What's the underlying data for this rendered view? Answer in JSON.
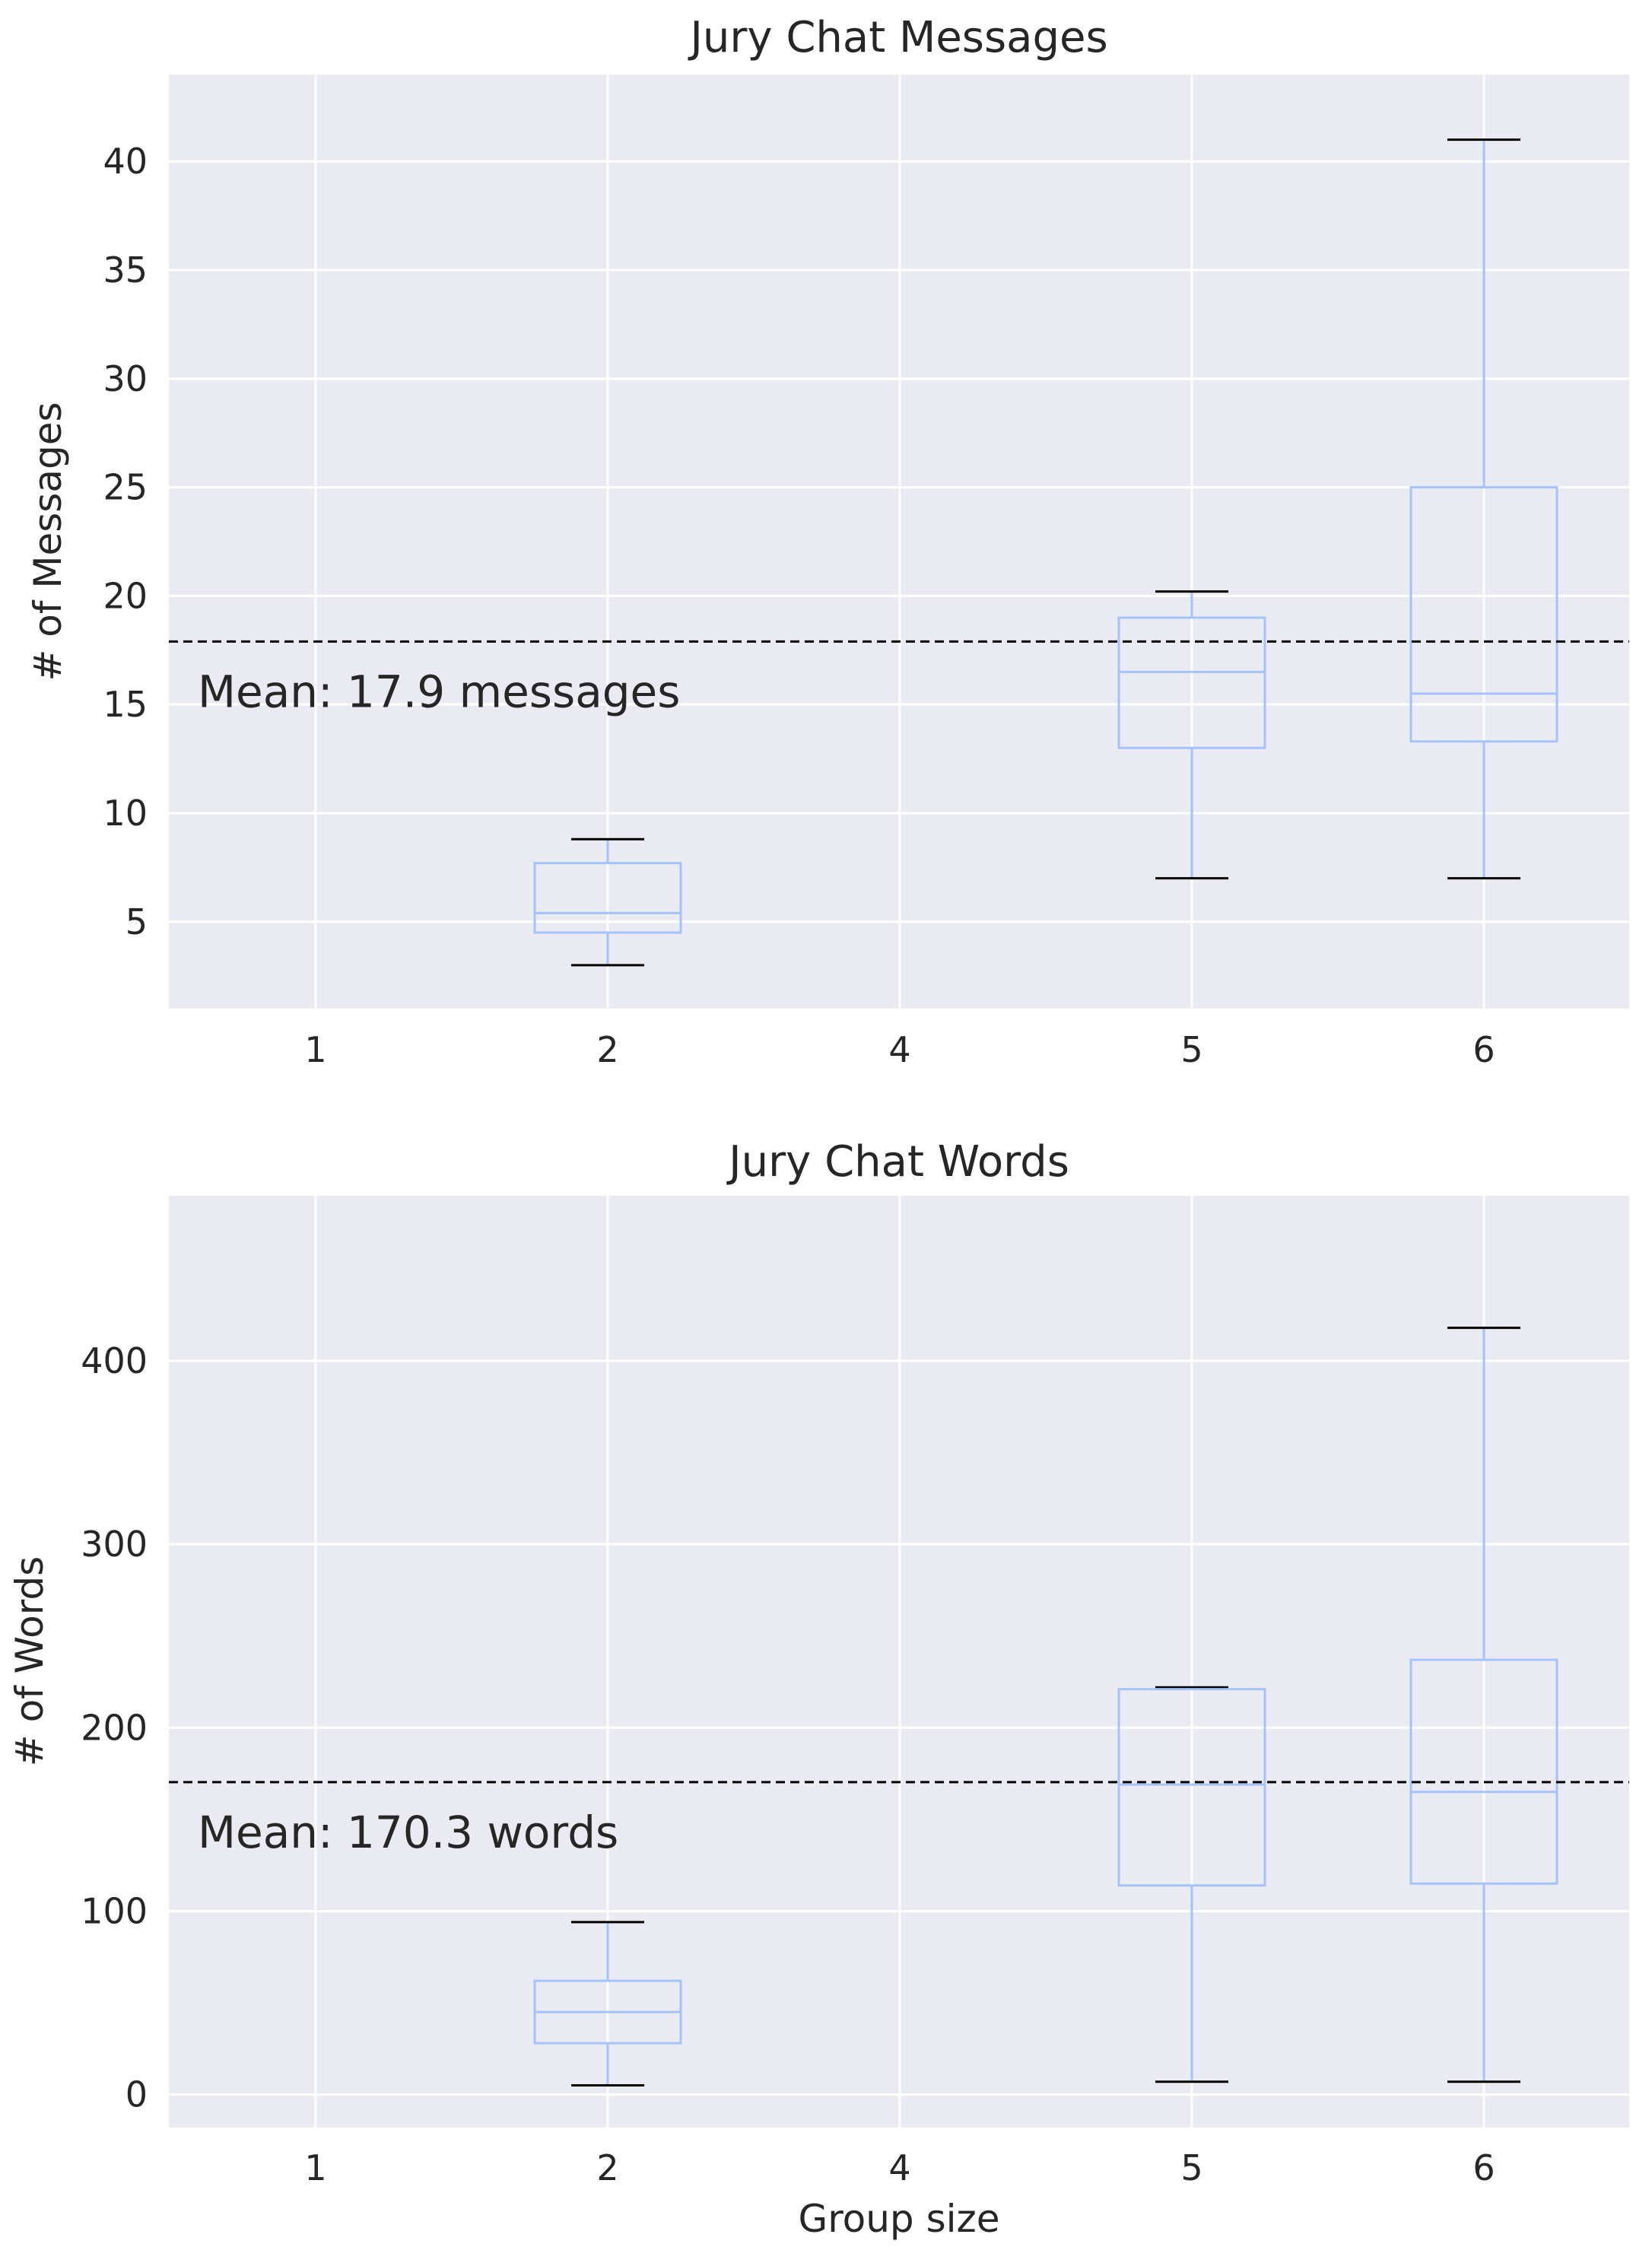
{
  "chart_data": [
    {
      "type": "box",
      "title": "Jury Chat Messages",
      "xlabel": "",
      "ylabel": "# of Messages",
      "categories": [
        "1",
        "2",
        "4",
        "5",
        "6"
      ],
      "ylim": [
        1,
        44
      ],
      "yticks": [
        5,
        10,
        15,
        20,
        25,
        30,
        35,
        40
      ],
      "boxes": [
        {
          "group": "2",
          "whisker_low": 3.0,
          "q1": 4.5,
          "median": 5.4,
          "q3": 7.7,
          "whisker_high": 8.8
        },
        {
          "group": "5",
          "whisker_low": 7.0,
          "q1": 13.0,
          "median": 16.5,
          "q3": 19.0,
          "whisker_high": 20.2
        },
        {
          "group": "6",
          "whisker_low": 7.0,
          "q1": 13.3,
          "median": 15.5,
          "q3": 25.0,
          "whisker_high": 41.0
        }
      ],
      "mean": 17.9,
      "mean_label": "Mean: 17.9 messages",
      "grid": true
    },
    {
      "type": "box",
      "title": "Jury Chat Words",
      "xlabel": "Group size",
      "ylabel": "# of Words",
      "categories": [
        "1",
        "2",
        "4",
        "5",
        "6"
      ],
      "ylim": [
        -18,
        490
      ],
      "yticks": [
        0,
        100,
        200,
        300,
        400
      ],
      "boxes": [
        {
          "group": "2",
          "whisker_low": 5,
          "q1": 28,
          "median": 45,
          "q3": 62,
          "whisker_high": 94
        },
        {
          "group": "5",
          "whisker_low": 7,
          "q1": 114,
          "median": 169,
          "q3": 221,
          "whisker_high": 222
        },
        {
          "group": "6",
          "whisker_low": 7,
          "q1": 115,
          "median": 165,
          "q3": 237,
          "whisker_high": 418
        }
      ],
      "mean": 170.3,
      "mean_label": "Mean: 170.3 words",
      "grid": true
    }
  ]
}
